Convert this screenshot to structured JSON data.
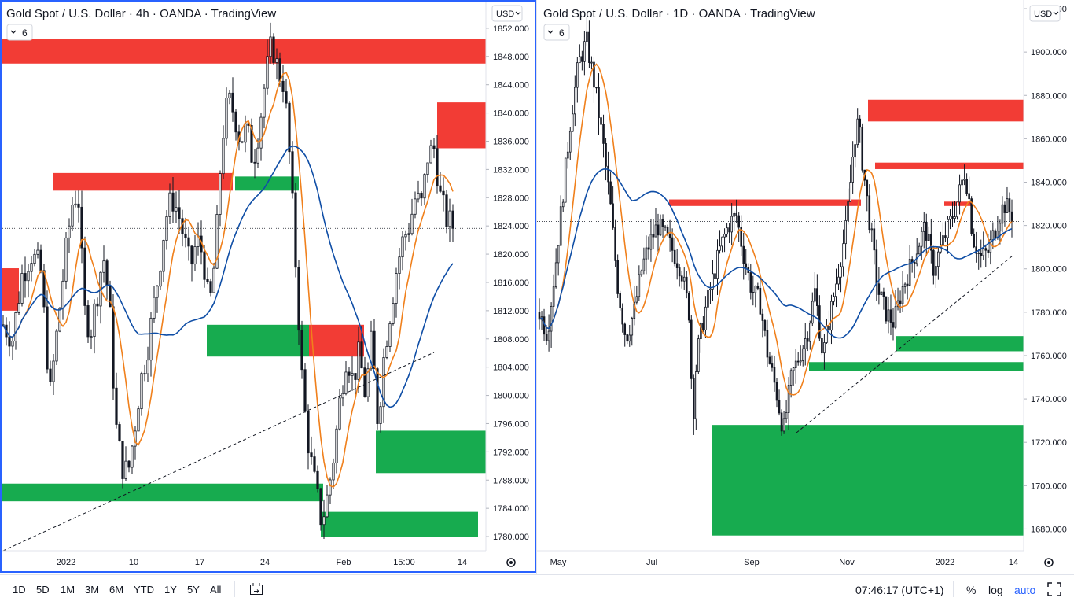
{
  "panes": [
    {
      "title": "Gold Spot / U.S. Dollar · 4h · OANDA · TradingView",
      "interval_badge": "6",
      "currency": "USD",
      "y_ticks": [
        "1852.000",
        "1848.000",
        "1844.000",
        "1840.000",
        "1836.000",
        "1832.000",
        "1828.000",
        "1824.000",
        "1820.000",
        "1816.000",
        "1812.000",
        "1808.000",
        "1804.000",
        "1800.000",
        "1796.000",
        "1792.000",
        "1788.000",
        "1784.000",
        "1780.000"
      ],
      "x_ticks": [
        "2022",
        "10",
        "17",
        "24",
        "Feb",
        "15:00",
        "14"
      ]
    },
    {
      "title": "Gold Spot / U.S. Dollar · 1D · OANDA · TradingView",
      "interval_badge": "6",
      "currency": "USD",
      "y_ticks": [
        "1920.000",
        "1900.000",
        "1880.000",
        "1860.000",
        "1840.000",
        "1820.000",
        "1800.000",
        "1780.000",
        "1760.000",
        "1740.000",
        "1720.000",
        "1700.000",
        "1680.000"
      ],
      "x_ticks": [
        "May",
        "Jul",
        "Sep",
        "Nov",
        "2022",
        "14"
      ]
    }
  ],
  "bottom_bar": {
    "timeframes": [
      "1D",
      "5D",
      "1M",
      "3M",
      "6M",
      "YTD",
      "1Y",
      "5Y",
      "All"
    ],
    "clock": "07:46:17 (UTC+1)",
    "percent": "%",
    "log": "log",
    "auto": "auto"
  },
  "colors": {
    "zone_red": "#f23c35",
    "zone_green": "#17ab4f",
    "ma_orange": "#f0801c",
    "ma_blue": "#0f4ea6",
    "candle": "#131722",
    "accent": "#2962ff"
  },
  "chart_data": [
    {
      "type": "candlestick",
      "symbol": "XAUUSD",
      "interval": "4h",
      "ylim": [
        1778,
        1856
      ],
      "y_ticks": [
        1852,
        1848,
        1844,
        1840,
        1836,
        1832,
        1828,
        1824,
        1820,
        1816,
        1812,
        1808,
        1804,
        1800,
        1796,
        1792,
        1788,
        1784,
        1780
      ],
      "close_path": [
        [
          0,
          1810
        ],
        [
          3,
          1808
        ],
        [
          6,
          1817
        ],
        [
          9,
          1820
        ],
        [
          12,
          1818
        ],
        [
          15,
          1800
        ],
        [
          18,
          1812
        ],
        [
          20,
          1820
        ],
        [
          22,
          1827
        ],
        [
          24,
          1829
        ],
        [
          26,
          1812
        ],
        [
          28,
          1809
        ],
        [
          30,
          1814
        ],
        [
          32,
          1820
        ],
        [
          34,
          1813
        ],
        [
          36,
          1796
        ],
        [
          38,
          1790
        ],
        [
          40,
          1789
        ],
        [
          42,
          1795
        ],
        [
          44,
          1802
        ],
        [
          46,
          1806
        ],
        [
          48,
          1812
        ],
        [
          50,
          1818
        ],
        [
          52,
          1825
        ],
        [
          54,
          1828
        ],
        [
          56,
          1826
        ],
        [
          58,
          1822
        ],
        [
          60,
          1818
        ],
        [
          62,
          1822
        ],
        [
          64,
          1820
        ],
        [
          66,
          1812
        ],
        [
          68,
          1820
        ],
        [
          70,
          1836
        ],
        [
          72,
          1842
        ],
        [
          74,
          1840
        ],
        [
          76,
          1836
        ],
        [
          78,
          1838
        ],
        [
          80,
          1833
        ],
        [
          82,
          1838
        ],
        [
          84,
          1845
        ],
        [
          86,
          1850
        ],
        [
          88,
          1846
        ],
        [
          90,
          1844
        ],
        [
          92,
          1832
        ],
        [
          94,
          1816
        ],
        [
          96,
          1800
        ],
        [
          98,
          1792
        ],
        [
          100,
          1787
        ],
        [
          102,
          1782
        ],
        [
          104,
          1786
        ],
        [
          106,
          1792
        ],
        [
          108,
          1800
        ],
        [
          110,
          1806
        ],
        [
          112,
          1802
        ],
        [
          114,
          1806
        ],
        [
          116,
          1800
        ],
        [
          118,
          1808
        ],
        [
          120,
          1796
        ],
        [
          122,
          1806
        ],
        [
          124,
          1812
        ],
        [
          126,
          1818
        ],
        [
          128,
          1822
        ],
        [
          130,
          1824
        ],
        [
          132,
          1828
        ],
        [
          134,
          1827
        ],
        [
          136,
          1834
        ],
        [
          138,
          1835
        ],
        [
          140,
          1828
        ],
        [
          142,
          1825
        ],
        [
          144,
          1824
        ]
      ],
      "zones": [
        {
          "color": "red",
          "y": [
            1847,
            1850.5
          ]
        },
        {
          "color": "red",
          "y": [
            1829,
            1831.5
          ]
        },
        {
          "color": "red",
          "y": [
            1812,
            1818
          ]
        },
        {
          "color": "red",
          "y": [
            1835,
            1841.5
          ]
        },
        {
          "color": "red",
          "y": [
            1805.5,
            1810
          ]
        },
        {
          "color": "green",
          "y": [
            1829,
            1831
          ]
        },
        {
          "color": "green",
          "y": [
            1805.5,
            1810
          ]
        },
        {
          "color": "green",
          "y": [
            1785,
            1787.5
          ]
        },
        {
          "color": "green",
          "y": [
            1789,
            1795
          ]
        },
        {
          "color": "green",
          "y": [
            1780,
            1783.5
          ]
        }
      ]
    },
    {
      "type": "candlestick",
      "symbol": "XAUUSD",
      "interval": "1D",
      "ylim": [
        1670,
        1924
      ],
      "y_ticks": [
        1920,
        1900,
        1880,
        1860,
        1840,
        1820,
        1800,
        1780,
        1760,
        1740,
        1720,
        1700,
        1680
      ],
      "x_ticks": [
        "May",
        "Jul",
        "Sep",
        "Nov",
        "2022",
        "14"
      ],
      "close_path": [
        [
          0,
          1780
        ],
        [
          4,
          1770
        ],
        [
          8,
          1800
        ],
        [
          12,
          1835
        ],
        [
          16,
          1870
        ],
        [
          20,
          1895
        ],
        [
          24,
          1905
        ],
        [
          28,
          1885
        ],
        [
          32,
          1860
        ],
        [
          36,
          1830
        ],
        [
          40,
          1790
        ],
        [
          44,
          1768
        ],
        [
          48,
          1780
        ],
        [
          52,
          1800
        ],
        [
          56,
          1812
        ],
        [
          60,
          1820
        ],
        [
          64,
          1815
        ],
        [
          68,
          1808
        ],
        [
          72,
          1800
        ],
        [
          76,
          1780
        ],
        [
          78,
          1730
        ],
        [
          80,
          1760
        ],
        [
          84,
          1780
        ],
        [
          88,
          1795
        ],
        [
          92,
          1810
        ],
        [
          96,
          1820
        ],
        [
          100,
          1825
        ],
        [
          104,
          1805
        ],
        [
          108,
          1790
        ],
        [
          112,
          1785
        ],
        [
          116,
          1760
        ],
        [
          120,
          1745
        ],
        [
          124,
          1725
        ],
        [
          128,
          1750
        ],
        [
          132,
          1760
        ],
        [
          136,
          1770
        ],
        [
          140,
          1790
        ],
        [
          144,
          1760
        ],
        [
          148,
          1780
        ],
        [
          152,
          1800
        ],
        [
          156,
          1820
        ],
        [
          160,
          1860
        ],
        [
          162,
          1868
        ],
        [
          164,
          1850
        ],
        [
          168,
          1820
        ],
        [
          172,
          1790
        ],
        [
          176,
          1780
        ],
        [
          180,
          1775
        ],
        [
          184,
          1790
        ],
        [
          188,
          1800
        ],
        [
          192,
          1810
        ],
        [
          196,
          1820
        ],
        [
          200,
          1800
        ],
        [
          204,
          1810
        ],
        [
          208,
          1820
        ],
        [
          212,
          1830
        ],
        [
          216,
          1845
        ],
        [
          218,
          1835
        ],
        [
          220,
          1815
        ],
        [
          224,
          1805
        ],
        [
          228,
          1808
        ],
        [
          232,
          1820
        ],
        [
          236,
          1830
        ],
        [
          240,
          1825
        ]
      ],
      "zones": [
        {
          "color": "red",
          "y": [
            1868,
            1878
          ]
        },
        {
          "color": "red",
          "y": [
            1846,
            1849
          ]
        },
        {
          "color": "red",
          "y": [
            1829,
            1832
          ]
        },
        {
          "color": "red",
          "y": [
            1829,
            1831
          ]
        },
        {
          "color": "green",
          "y": [
            1762,
            1769
          ]
        },
        {
          "color": "green",
          "y": [
            1753,
            1757
          ]
        },
        {
          "color": "green",
          "y": [
            1677,
            1728
          ]
        }
      ]
    }
  ]
}
